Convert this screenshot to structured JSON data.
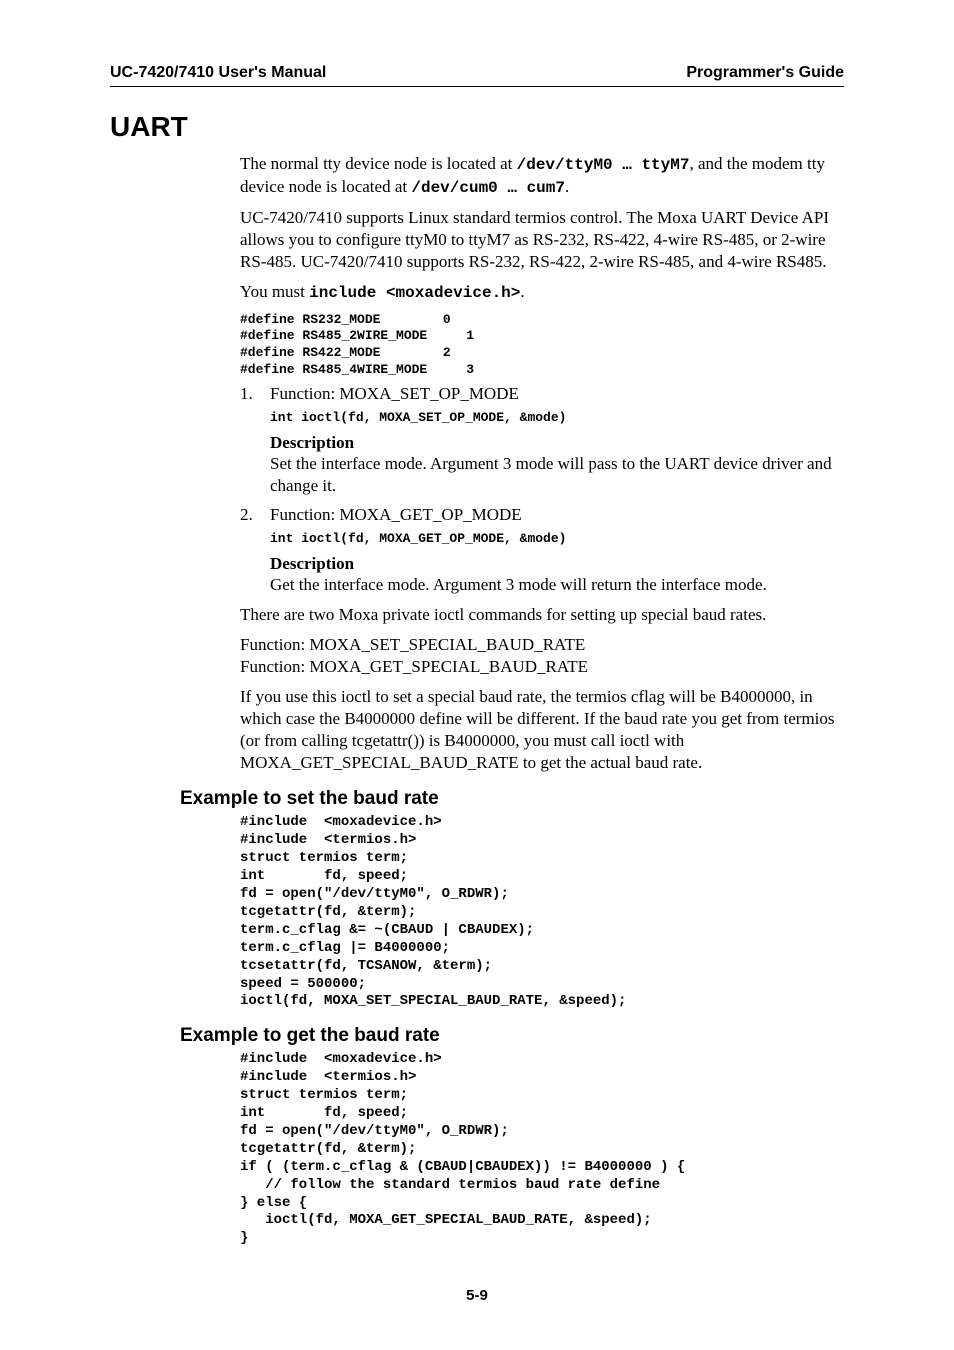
{
  "header": {
    "left": "UC-7420/7410 User's Manual",
    "right": "Programmer's Guide"
  },
  "title": "UART",
  "para1_a": "The normal tty device node is located at ",
  "para1_b": "/dev/ttyM0 … ttyM7",
  "para1_c": ", and the modem tty device node is located at  ",
  "para1_d": "/dev/cum0 … cum7",
  "para1_e": ".",
  "para2": "UC-7420/7410 supports Linux standard termios control. The Moxa UART Device API allows you to configure ttyM0 to ttyM7 as RS-232, RS-422, 4-wire RS-485, or 2-wire RS-485. UC-7420/7410 supports RS-232, RS-422, 2-wire RS-485, and 4-wire RS485.",
  "para3_a": "You must ",
  "para3_b": "include <moxadevice.h>",
  "para3_c": ".",
  "defines": "#define RS232_MODE        0\n#define RS485_2WIRE_MODE     1\n#define RS422_MODE        2\n#define RS485_4WIRE_MODE     3",
  "item1_num": "1.",
  "item1_text": "Function: MOXA_SET_OP_MODE",
  "item1_code": "int ioctl(fd, MOXA_SET_OP_MODE, &mode)",
  "desc_label": "Description",
  "item1_desc": "Set the interface mode. Argument 3 mode will pass to the UART device driver and change it.",
  "item2_num": "2.",
  "item2_text": "Function: MOXA_GET_OP_MODE",
  "item2_code": "int ioctl(fd, MOXA_GET_OP_MODE, &mode)",
  "item2_desc": "Get the interface mode. Argument 3 mode will return the interface mode.",
  "para4": "There are two Moxa private ioctl commands for setting up special baud rates.",
  "para5a": "Function: MOXA_SET_SPECIAL_BAUD_RATE",
  "para5b": "Function: MOXA_GET_SPECIAL_BAUD_RATE",
  "para6": "If you use this ioctl to set a special baud rate, the termios cflag will be B4000000, in which case the B4000000 define will be different. If the baud rate you get from termios (or from calling tcgetattr()) is B4000000, you must call ioctl with MOXA_GET_SPECIAL_BAUD_RATE to get the actual baud rate.",
  "h3_set": "Example to set the baud rate",
  "code_set": "#include  <moxadevice.h>\n#include  <termios.h>\nstruct termios term;\nint       fd, speed;\nfd = open(\"/dev/ttyM0\", O_RDWR);\ntcgetattr(fd, &term);\nterm.c_cflag &= ~(CBAUD | CBAUDEX);\nterm.c_cflag |= B4000000;\ntcsetattr(fd, TCSANOW, &term);\nspeed = 500000;\nioctl(fd, MOXA_SET_SPECIAL_BAUD_RATE, &speed);",
  "h3_get": "Example to get the baud rate",
  "code_get": "#include  <moxadevice.h>\n#include  <termios.h>\nstruct termios term;\nint       fd, speed;\nfd = open(\"/dev/ttyM0\", O_RDWR);\ntcgetattr(fd, &term);\nif ( (term.c_cflag & (CBAUD|CBAUDEX)) != B4000000 ) {\n   // follow the standard termios baud rate define\n} else {\n   ioctl(fd, MOXA_GET_SPECIAL_BAUD_RATE, &speed);\n}",
  "footer": "5-9",
  "colors": {
    "text": "#000000",
    "background": "#ffffff",
    "rule": "#000000"
  },
  "fontsizes_pt": {
    "header": 12,
    "h1": 21,
    "body": 13,
    "code_defines": 10,
    "h3": 14,
    "code_examples": 11,
    "footer": 11
  }
}
